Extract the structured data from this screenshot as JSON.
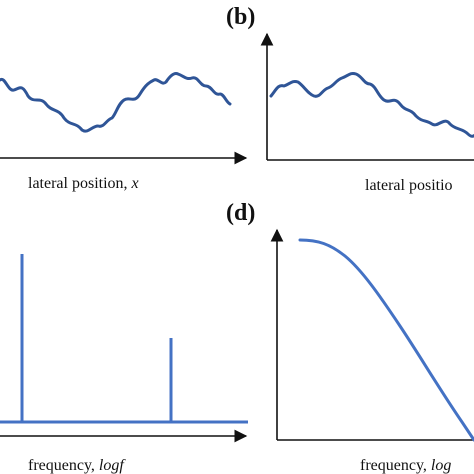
{
  "panels": {
    "b": {
      "letter": "(b)"
    },
    "d": {
      "letter": "(d)"
    }
  },
  "labels": {
    "a_xlabel_text": "lateral position, ",
    "a_xlabel_var": "x",
    "b_xlabel_text": "lateral positio",
    "c_xlabel_text": "frequency, ",
    "c_xlabel_var": "logf",
    "d_xlabel_text": "frequency, ",
    "d_xlabel_var": "log"
  },
  "colors": {
    "curve": "#2f5597",
    "spike": "#4472c4",
    "axis": "#111111"
  }
}
